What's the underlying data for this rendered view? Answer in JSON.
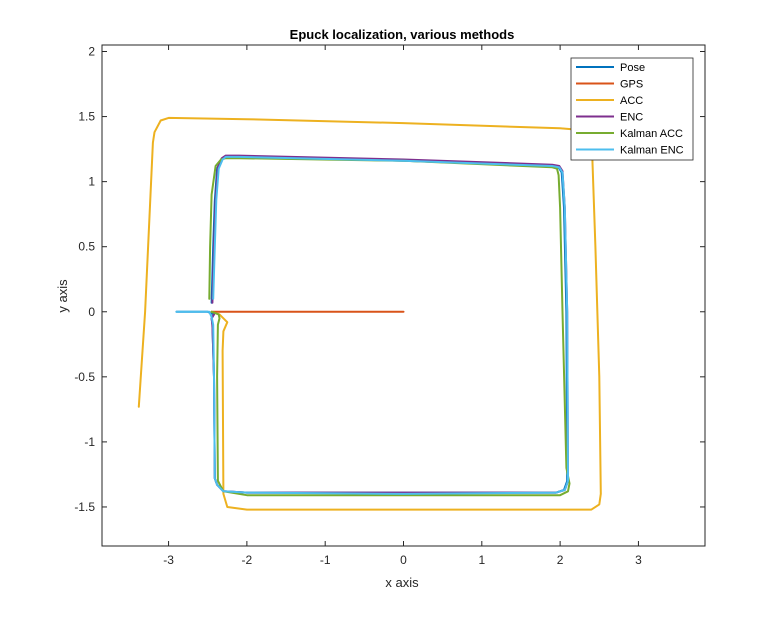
{
  "chart_data": {
    "type": "line",
    "title": "Epuck localization, various methods",
    "xlabel": "x axis",
    "ylabel": "y axis",
    "xlim": [
      -3.85,
      3.85
    ],
    "ylim": [
      -1.8,
      2.05
    ],
    "xticks": [
      -3,
      -2,
      -1,
      0,
      1,
      2,
      3
    ],
    "yticks": [
      -1.5,
      -1,
      -0.5,
      0,
      0.5,
      1,
      1.5,
      2
    ],
    "grid": false,
    "legend_position": "top-right",
    "series": [
      {
        "name": "Pose",
        "color": "#0072BD",
        "x": [
          -2.45,
          -2.43,
          -2.41,
          -2.38,
          -2.33,
          -2.28,
          -2.1,
          0,
          1.9,
          1.98,
          2.02,
          2.05,
          2.08,
          2.09,
          2.05,
          1.95,
          0,
          -2.0,
          -2.3,
          -2.38,
          -2.41,
          -2.42,
          -2.44,
          -2.45,
          -2.42,
          -2.5,
          -2.6,
          -2.75,
          -2.9
        ],
        "y": [
          0.07,
          0.5,
          0.85,
          1.1,
          1.17,
          1.19,
          1.19,
          1.16,
          1.12,
          1.11,
          1.07,
          0.8,
          0.0,
          -1.3,
          -1.37,
          -1.39,
          -1.39,
          -1.39,
          -1.38,
          -1.33,
          -1.28,
          -0.5,
          -0.1,
          -0.05,
          -0.02,
          0,
          0,
          0,
          0
        ]
      },
      {
        "name": "GPS",
        "color": "#D95319",
        "x": [
          -2.45,
          -2.3,
          -2.0,
          -1.0,
          0
        ],
        "y": [
          0,
          0,
          0,
          0,
          0
        ]
      },
      {
        "name": "ACC",
        "color": "#EDB120",
        "x": [
          -3.38,
          -3.3,
          -3.2,
          -3.18,
          -3.1,
          -3.0,
          -2.0,
          0,
          2.0,
          2.4,
          2.45,
          2.5,
          2.52,
          2.5,
          2.4,
          2.0,
          0,
          -2.0,
          -2.25,
          -2.3,
          -2.31,
          -2.3,
          -2.25,
          -2.35,
          -2.45
        ],
        "y": [
          -0.73,
          0.0,
          1.3,
          1.38,
          1.47,
          1.49,
          1.48,
          1.45,
          1.41,
          1.39,
          0.5,
          -0.5,
          -1.4,
          -1.48,
          -1.52,
          -1.52,
          -1.52,
          -1.52,
          -1.5,
          -1.4,
          -0.3,
          -0.15,
          -0.08,
          -0.02,
          0.0
        ]
      },
      {
        "name": "ENC",
        "color": "#7E2F8E",
        "x": [
          -2.44,
          -2.42,
          -2.4,
          -2.37,
          -2.32,
          -2.27,
          -2.1,
          0,
          1.9,
          1.99,
          2.03,
          2.06,
          2.09,
          2.1,
          2.06,
          1.95,
          0,
          -2.0,
          -2.3,
          -2.38,
          -2.41,
          -2.42,
          -2.44,
          -2.45,
          -2.42
        ],
        "y": [
          0.07,
          0.5,
          0.85,
          1.11,
          1.18,
          1.2,
          1.2,
          1.17,
          1.13,
          1.12,
          1.08,
          0.8,
          0.0,
          -1.3,
          -1.37,
          -1.39,
          -1.39,
          -1.39,
          -1.38,
          -1.33,
          -1.28,
          -0.5,
          -0.1,
          -0.05,
          -0.02
        ]
      },
      {
        "name": "Kalman ACC",
        "color": "#77AC30",
        "x": [
          -2.48,
          -2.47,
          -2.45,
          -2.4,
          -2.33,
          -2.27,
          -2.1,
          0,
          1.9,
          1.96,
          1.98,
          2.0,
          2.03,
          2.08,
          2.12,
          2.1,
          2.0,
          0,
          -2.0,
          -2.3,
          -2.37,
          -2.38,
          -2.37,
          -2.35,
          -2.36,
          -2.45
        ],
        "y": [
          0.1,
          0.5,
          0.9,
          1.12,
          1.17,
          1.18,
          1.18,
          1.16,
          1.11,
          1.1,
          1.05,
          0.8,
          0.0,
          -1.2,
          -1.32,
          -1.38,
          -1.41,
          -1.41,
          -1.41,
          -1.38,
          -1.3,
          -0.5,
          -0.1,
          -0.05,
          -0.02,
          0.0
        ]
      },
      {
        "name": "Kalman ENC",
        "color": "#4DBEEE",
        "x": [
          -2.43,
          -2.41,
          -2.39,
          -2.36,
          -2.31,
          -2.27,
          -2.1,
          0,
          1.9,
          1.99,
          2.03,
          2.06,
          2.09,
          2.1,
          2.06,
          1.95,
          0,
          -2.0,
          -2.3,
          -2.38,
          -2.41,
          -2.42,
          -2.43,
          -2.45,
          -2.48,
          -2.6,
          -2.75,
          -2.9
        ],
        "y": [
          0.1,
          0.5,
          0.86,
          1.1,
          1.17,
          1.19,
          1.19,
          1.16,
          1.12,
          1.11,
          1.07,
          0.8,
          0.0,
          -1.3,
          -1.37,
          -1.39,
          -1.4,
          -1.39,
          -1.38,
          -1.33,
          -1.28,
          -0.5,
          -0.1,
          -0.04,
          0.0,
          0,
          0,
          0
        ]
      }
    ]
  }
}
